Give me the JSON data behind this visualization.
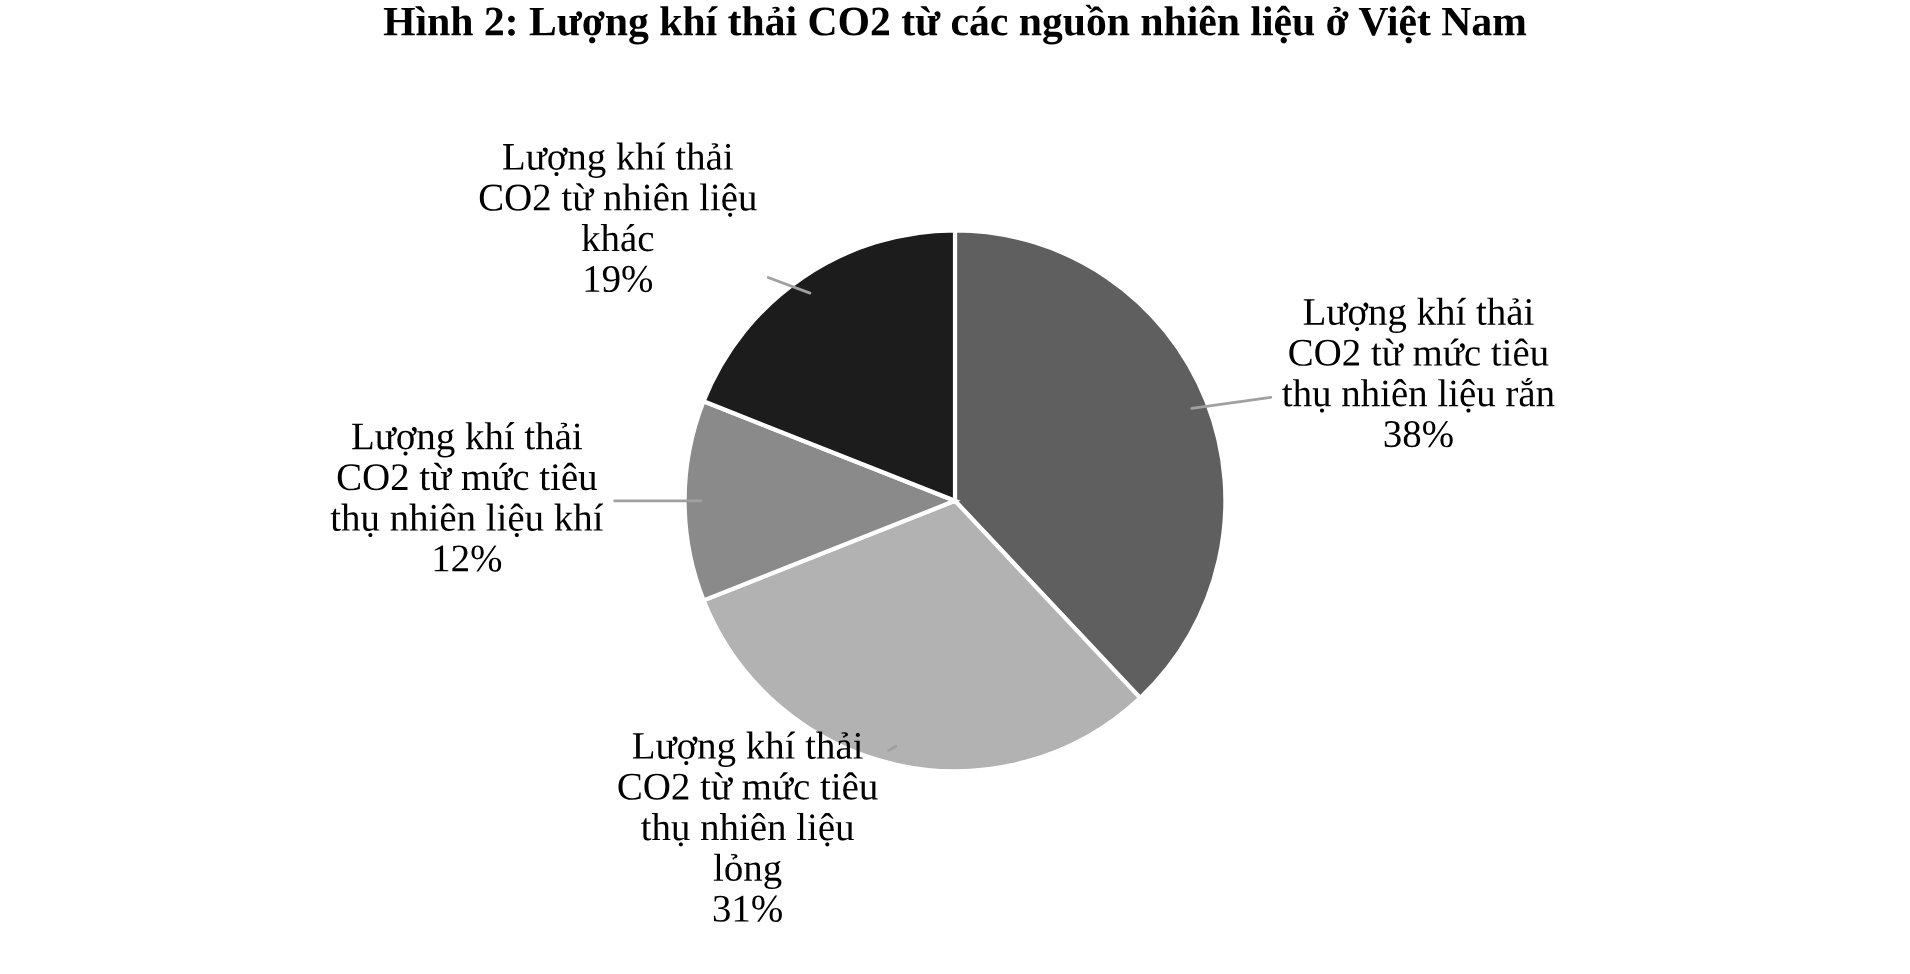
{
  "chart_data": {
    "type": "pie",
    "title": "Hình 2: Lượng khí thải CO2 từ các nguồn nhiên liệu ở Việt Nam",
    "categories": [
      "Lượng khí thải\nCO2 từ mức tiêu\nthụ nhiên liệu rắn",
      "Lượng khí thải\nCO2 từ mức tiêu\nthụ nhiên liệu\nlỏng",
      "Lượng khí thải\nCO2 từ mức tiêu\nthụ nhiên liệu khí",
      "Lượng khí thải\nCO2 từ nhiên liệu\nkhác"
    ],
    "values": [
      38,
      31,
      12,
      19
    ],
    "value_labels": [
      "38%",
      "31%",
      "12%",
      "19%"
    ],
    "colors": [
      "#5f5f5f",
      "#b2b2b2",
      "#8a8a8a",
      "#1c1c1c"
    ]
  }
}
